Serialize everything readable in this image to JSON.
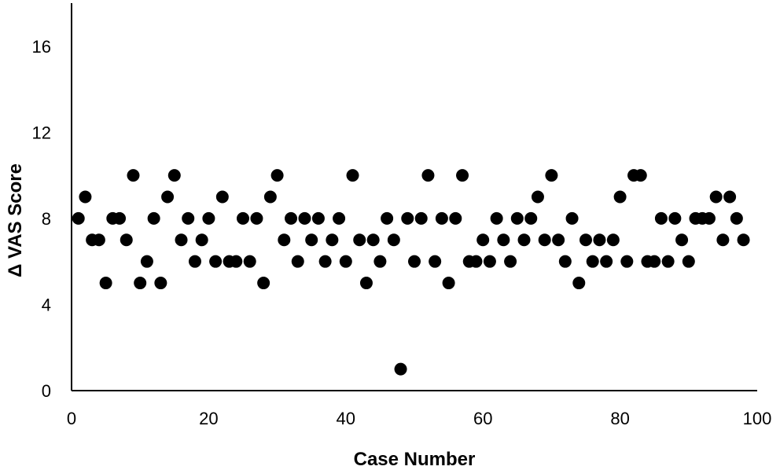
{
  "chart_data": {
    "type": "scatter",
    "title": "",
    "xlabel": "Case Number",
    "ylabel": "Δ VAS Score",
    "xlim": [
      0,
      100
    ],
    "ylim": [
      0,
      18
    ],
    "x_ticks": [
      0,
      20,
      40,
      60,
      80,
      100
    ],
    "y_ticks": [
      0,
      4,
      8,
      12,
      16
    ],
    "grid": false,
    "legend": "none",
    "marker_color": "#000000",
    "series": [
      {
        "x": [
          1,
          2,
          3,
          4,
          5,
          6,
          7,
          8,
          9,
          10,
          11,
          12,
          13,
          14,
          15,
          16,
          17,
          18,
          19,
          20,
          21,
          22,
          23,
          24,
          25,
          26,
          27,
          28,
          29,
          30,
          31,
          32,
          33,
          34,
          35,
          36,
          37,
          38,
          39,
          40,
          41,
          42,
          43,
          44,
          45,
          46,
          47,
          48,
          49,
          50,
          51,
          52,
          53,
          54,
          55,
          56,
          57,
          58,
          59,
          60,
          61,
          62,
          63,
          64,
          65,
          66,
          67,
          68,
          69,
          70,
          71,
          72,
          73,
          74,
          75,
          76,
          77,
          78,
          79,
          80,
          81,
          82,
          83,
          84,
          85,
          86,
          87,
          88,
          89,
          90,
          91,
          92,
          93,
          94,
          95,
          96,
          97,
          98
        ],
        "y": [
          8,
          9,
          7,
          7,
          5,
          8,
          8,
          7,
          10,
          5,
          6,
          8,
          5,
          9,
          10,
          7,
          8,
          6,
          7,
          8,
          6,
          9,
          6,
          6,
          8,
          6,
          8,
          5,
          9,
          10,
          7,
          8,
          6,
          8,
          7,
          8,
          6,
          7,
          8,
          6,
          10,
          7,
          5,
          7,
          6,
          8,
          7,
          1,
          8,
          6,
          8,
          10,
          6,
          8,
          5,
          8,
          10,
          6,
          6,
          7,
          6,
          8,
          7,
          6,
          8,
          7,
          8,
          9,
          7,
          10,
          7,
          6,
          8,
          5,
          7,
          6,
          7,
          6,
          7,
          9,
          6,
          10,
          10,
          6,
          6,
          8,
          6,
          8,
          7,
          6,
          8,
          8,
          8,
          9,
          7,
          9,
          8,
          7
        ]
      }
    ]
  }
}
